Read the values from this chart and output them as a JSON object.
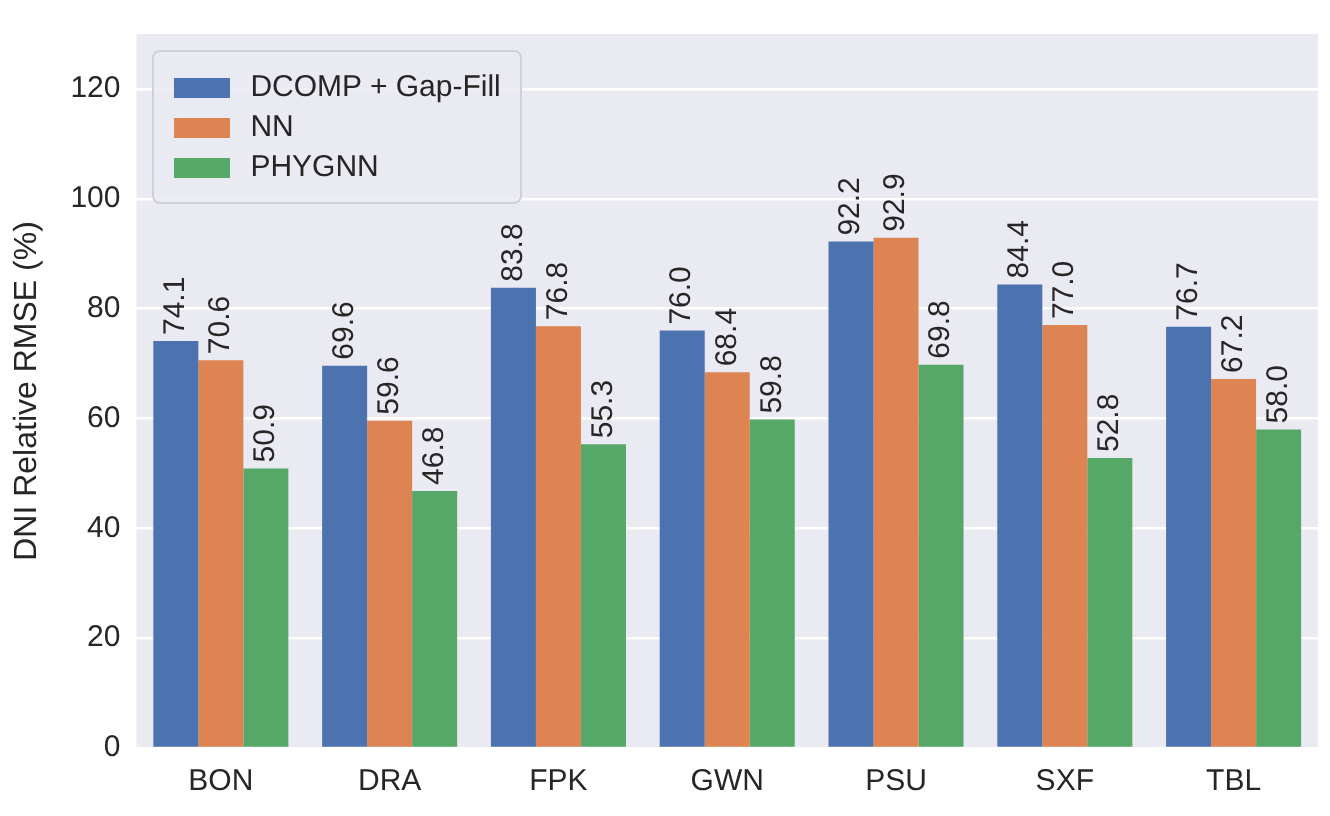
{
  "chart_data": {
    "type": "bar",
    "ylabel": "DNI Relative RMSE (%)",
    "categories": [
      "BON",
      "DRA",
      "FPK",
      "GWN",
      "PSU",
      "SXF",
      "TBL"
    ],
    "series": [
      {
        "name": "DCOMP + Gap-Fill",
        "color": "#4c72b0",
        "values": [
          74.1,
          69.6,
          83.8,
          76.0,
          92.2,
          84.4,
          76.7
        ],
        "value_labels": [
          "74.1",
          "69.6",
          "83.8",
          "76.0",
          "92.2",
          "84.4",
          "76.7"
        ]
      },
      {
        "name": "NN",
        "color": "#dd8452",
        "values": [
          70.6,
          59.6,
          76.8,
          68.4,
          92.9,
          77.0,
          67.2
        ],
        "value_labels": [
          "70.6",
          "59.6",
          "76.8",
          "68.4",
          "92.9",
          "77.0",
          "67.2"
        ]
      },
      {
        "name": "PHYGNN",
        "color": "#55a868",
        "values": [
          50.9,
          46.8,
          55.3,
          59.8,
          69.8,
          52.8,
          58.0
        ],
        "value_labels": [
          "50.9",
          "46.8",
          "55.3",
          "59.8",
          "69.8",
          "52.8",
          "58.0"
        ]
      }
    ],
    "ylim": [
      0,
      130
    ],
    "yticks": [
      0,
      20,
      40,
      60,
      80,
      100,
      120
    ],
    "grid": "y",
    "legend": "top left"
  }
}
